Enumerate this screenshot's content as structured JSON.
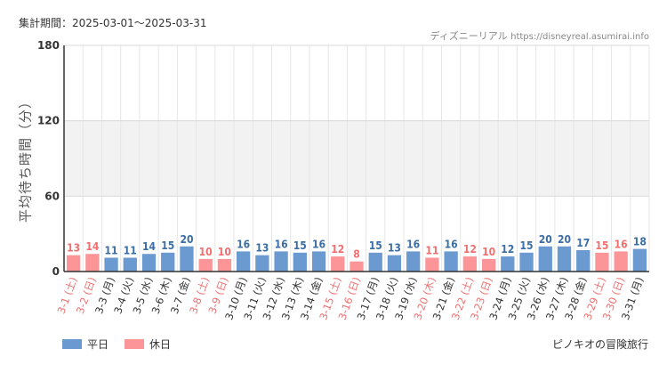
{
  "header": {
    "period_label": "集計期間：2025-03-01〜2025-03-31",
    "source_label": "ディズニーリアル",
    "source_url": "https://disneyreal.asumirai.info"
  },
  "footer": {
    "attraction": "ピノキオの冒険旅行"
  },
  "colors": {
    "weekday": "#6a9ad0",
    "holiday": "#fb9597",
    "weekday_label": "#3b6ea5",
    "holiday_label": "#f07070",
    "weekday_tick": "#333333",
    "holiday_tick": "#f07070",
    "band": "#f2f2f2",
    "grid": "#e6e6e6"
  },
  "chart_data": {
    "type": "bar",
    "title": "",
    "xlabel": "",
    "ylabel": "平均待ち時間（分）",
    "ylim": [
      0,
      180
    ],
    "yticks": [
      "0",
      "60",
      "120",
      "180"
    ],
    "shaded_band": [
      60,
      120
    ],
    "legend": [
      {
        "name": "平日",
        "kind": "weekday"
      },
      {
        "name": "休日",
        "kind": "holiday"
      }
    ],
    "categories": [
      "3-1 (土)",
      "3-2 (日)",
      "3-3 (月)",
      "3-4 (火)",
      "3-5 (水)",
      "3-6 (木)",
      "3-7 (金)",
      "3-8 (土)",
      "3-9 (日)",
      "3-10 (月)",
      "3-11 (火)",
      "3-12 (水)",
      "3-13 (木)",
      "3-14 (金)",
      "3-15 (土)",
      "3-16 (日)",
      "3-17 (月)",
      "3-18 (火)",
      "3-19 (水)",
      "3-20 (木)",
      "3-21 (金)",
      "3-22 (土)",
      "3-23 (日)",
      "3-24 (月)",
      "3-25 (火)",
      "3-26 (水)",
      "3-27 (木)",
      "3-28 (金)",
      "3-29 (土)",
      "3-30 (日)",
      "3-31 (月)"
    ],
    "values": [
      13,
      14,
      11,
      11,
      14,
      15,
      20,
      10,
      10,
      16,
      13,
      16,
      15,
      16,
      12,
      8,
      15,
      13,
      16,
      11,
      16,
      12,
      10,
      12,
      15,
      20,
      20,
      17,
      15,
      16,
      18
    ],
    "holiday": [
      true,
      true,
      false,
      false,
      false,
      false,
      false,
      true,
      true,
      false,
      false,
      false,
      false,
      false,
      true,
      true,
      false,
      false,
      false,
      true,
      false,
      true,
      true,
      false,
      false,
      false,
      false,
      false,
      true,
      true,
      false
    ]
  }
}
